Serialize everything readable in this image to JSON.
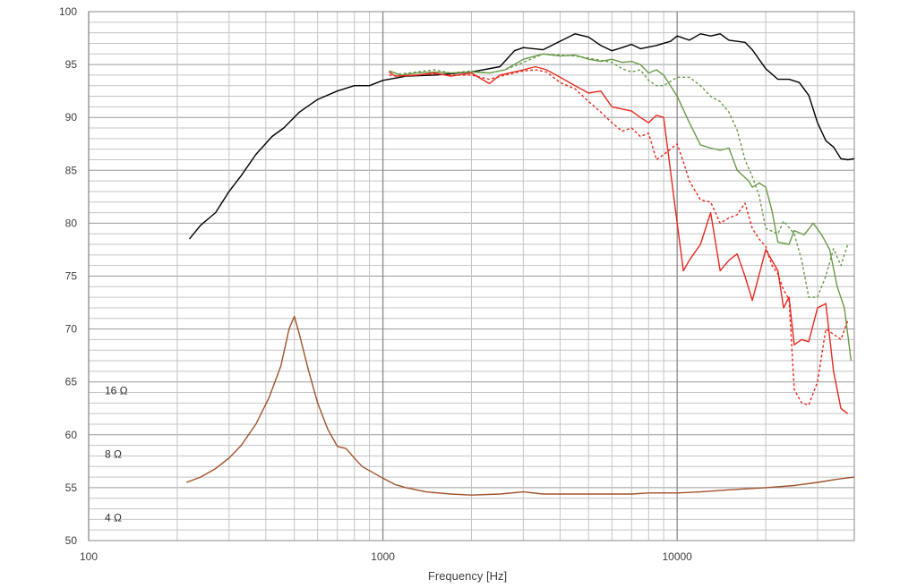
{
  "chart_data": {
    "type": "line",
    "xlabel": "Frequency [Hz]",
    "ylabel": "",
    "xscale": "log",
    "xlim": [
      100,
      40000
    ],
    "ylim": [
      50,
      100
    ],
    "x_tick_labels": [
      "100",
      "1000",
      "10000"
    ],
    "y_ticks": [
      50,
      55,
      60,
      65,
      70,
      75,
      80,
      85,
      90,
      95,
      100
    ],
    "grid": true,
    "impedance_labels": [
      "16 Ω",
      "8 Ω",
      "4 Ω"
    ],
    "series": [
      {
        "color": "#000000",
        "dash": "solid",
        "points": [
          [
            220,
            78.5
          ],
          [
            240,
            79.8
          ],
          [
            270,
            81
          ],
          [
            300,
            83
          ],
          [
            330,
            84.5
          ],
          [
            370,
            86.5
          ],
          [
            420,
            88.2
          ],
          [
            460,
            89
          ],
          [
            520,
            90.5
          ],
          [
            600,
            91.7
          ],
          [
            700,
            92.5
          ],
          [
            800,
            93
          ],
          [
            900,
            93
          ],
          [
            1000,
            93.5
          ],
          [
            1200,
            93.9
          ],
          [
            1500,
            94
          ],
          [
            2000,
            94.3
          ],
          [
            2500,
            94.8
          ],
          [
            2800,
            96.3
          ],
          [
            3000,
            96.6
          ],
          [
            3500,
            96.4
          ],
          [
            4000,
            97.2
          ],
          [
            4500,
            97.9
          ],
          [
            5000,
            97.6
          ],
          [
            5500,
            96.8
          ],
          [
            6000,
            96.3
          ],
          [
            6500,
            96.6
          ],
          [
            7000,
            96.9
          ],
          [
            7500,
            96.5
          ],
          [
            8500,
            96.8
          ],
          [
            9500,
            97.2
          ],
          [
            10000,
            97.7
          ],
          [
            11000,
            97.3
          ],
          [
            12000,
            97.9
          ],
          [
            13000,
            97.7
          ],
          [
            14000,
            97.9
          ],
          [
            15000,
            97.3
          ],
          [
            17000,
            97.1
          ],
          [
            18000,
            96.4
          ],
          [
            20000,
            94.6
          ],
          [
            22000,
            93.6
          ],
          [
            24000,
            93.6
          ],
          [
            26000,
            93.3
          ],
          [
            28000,
            92.1
          ],
          [
            30000,
            89.5
          ],
          [
            32000,
            87.8
          ],
          [
            34000,
            87.2
          ],
          [
            36000,
            86.1
          ],
          [
            38000,
            86
          ],
          [
            40000,
            86.1
          ]
        ]
      },
      {
        "color": "#6a9a4a",
        "dash": "solid",
        "points": [
          [
            1050,
            94.4
          ],
          [
            1150,
            94
          ],
          [
            1300,
            94.2
          ],
          [
            1500,
            94.3
          ],
          [
            1700,
            94.2
          ],
          [
            2000,
            94.3
          ],
          [
            2300,
            94.2
          ],
          [
            2600,
            94.5
          ],
          [
            3000,
            95.5
          ],
          [
            3500,
            96
          ],
          [
            4000,
            95.8
          ],
          [
            4500,
            95.9
          ],
          [
            5000,
            95.5
          ],
          [
            5500,
            95.3
          ],
          [
            6000,
            95.5
          ],
          [
            6500,
            95.2
          ],
          [
            7000,
            95.3
          ],
          [
            7500,
            95
          ],
          [
            8000,
            94.2
          ],
          [
            8500,
            94.5
          ],
          [
            9000,
            94
          ],
          [
            10000,
            92
          ],
          [
            11000,
            89.5
          ],
          [
            12000,
            87.4
          ],
          [
            13000,
            87.1
          ],
          [
            14000,
            86.9
          ],
          [
            15000,
            87.1
          ],
          [
            16000,
            85
          ],
          [
            17500,
            84
          ],
          [
            18000,
            83.4
          ],
          [
            19000,
            83.8
          ],
          [
            20000,
            83.4
          ],
          [
            21000,
            81.2
          ],
          [
            22000,
            78.2
          ],
          [
            24000,
            78
          ],
          [
            25000,
            79.3
          ],
          [
            27000,
            78.9
          ],
          [
            29000,
            80
          ],
          [
            31000,
            78.9
          ],
          [
            33000,
            77.5
          ],
          [
            35000,
            74
          ],
          [
            37000,
            72
          ],
          [
            39000,
            67
          ]
        ]
      },
      {
        "color": "#6a9a4a",
        "dash": "dashed",
        "points": [
          [
            1050,
            94.3
          ],
          [
            1150,
            94.1
          ],
          [
            1300,
            94.3
          ],
          [
            1500,
            94.5
          ],
          [
            1700,
            94.2
          ],
          [
            2000,
            94.4
          ],
          [
            2300,
            94.2
          ],
          [
            2600,
            94.5
          ],
          [
            3000,
            95.2
          ],
          [
            3500,
            96
          ],
          [
            4000,
            95.9
          ],
          [
            4500,
            95.8
          ],
          [
            5000,
            95.6
          ],
          [
            5500,
            95.4
          ],
          [
            6000,
            95.2
          ],
          [
            6500,
            94.6
          ],
          [
            7000,
            94.3
          ],
          [
            7500,
            94.5
          ],
          [
            8000,
            93.5
          ],
          [
            8500,
            93
          ],
          [
            9000,
            93
          ],
          [
            10000,
            93.8
          ],
          [
            11000,
            93.8
          ],
          [
            12000,
            93
          ],
          [
            13000,
            92
          ],
          [
            14000,
            91.5
          ],
          [
            15000,
            90.5
          ],
          [
            16000,
            88.8
          ],
          [
            17000,
            86
          ],
          [
            18000,
            84.4
          ],
          [
            19000,
            82.6
          ],
          [
            20000,
            79.5
          ],
          [
            22000,
            79
          ],
          [
            23000,
            80.2
          ],
          [
            25000,
            79
          ],
          [
            26500,
            76.5
          ],
          [
            28000,
            73
          ],
          [
            30000,
            73
          ],
          [
            32000,
            75
          ],
          [
            34000,
            77.6
          ],
          [
            36000,
            76
          ],
          [
            38000,
            78
          ]
        ]
      },
      {
        "color": "#e8281e",
        "dash": "solid",
        "points": [
          [
            1050,
            94.3
          ],
          [
            1100,
            93.9
          ],
          [
            1300,
            94
          ],
          [
            1500,
            94.2
          ],
          [
            1700,
            93.9
          ],
          [
            2000,
            94.2
          ],
          [
            2300,
            93.2
          ],
          [
            2500,
            94
          ],
          [
            3000,
            94.5
          ],
          [
            3300,
            94.8
          ],
          [
            3600,
            94.5
          ],
          [
            4000,
            93.8
          ],
          [
            4500,
            93
          ],
          [
            5000,
            92.3
          ],
          [
            5500,
            92.5
          ],
          [
            6000,
            91
          ],
          [
            7000,
            90.6
          ],
          [
            7500,
            90
          ],
          [
            8000,
            89.5
          ],
          [
            8500,
            90.2
          ],
          [
            9000,
            90
          ],
          [
            10000,
            80
          ],
          [
            10500,
            75.5
          ],
          [
            11000,
            76.5
          ],
          [
            12000,
            78
          ],
          [
            13000,
            81
          ],
          [
            14000,
            75.5
          ],
          [
            15000,
            76.5
          ],
          [
            16000,
            77.1
          ],
          [
            17000,
            75
          ],
          [
            18000,
            72.7
          ],
          [
            20000,
            77.5
          ],
          [
            22000,
            75.5
          ],
          [
            23000,
            72
          ],
          [
            24000,
            73
          ],
          [
            25000,
            68.5
          ],
          [
            26500,
            69
          ],
          [
            28000,
            68.8
          ],
          [
            30000,
            72
          ],
          [
            32000,
            72.4
          ],
          [
            34000,
            66
          ],
          [
            36000,
            62.5
          ],
          [
            38000,
            62
          ]
        ]
      },
      {
        "color": "#e8281e",
        "dash": "dashed",
        "points": [
          [
            1050,
            94
          ],
          [
            1150,
            93.9
          ],
          [
            1300,
            94
          ],
          [
            1500,
            94.1
          ],
          [
            1700,
            94
          ],
          [
            2000,
            94
          ],
          [
            2300,
            93.6
          ],
          [
            2600,
            94
          ],
          [
            3000,
            94.4
          ],
          [
            3300,
            94.5
          ],
          [
            3600,
            94.3
          ],
          [
            4000,
            93.3
          ],
          [
            4500,
            92.7
          ],
          [
            5000,
            91.5
          ],
          [
            5500,
            90.5
          ],
          [
            6000,
            89.5
          ],
          [
            6500,
            88.7
          ],
          [
            7000,
            89
          ],
          [
            7500,
            88.2
          ],
          [
            8000,
            88.5
          ],
          [
            8500,
            86
          ],
          [
            9000,
            86.5
          ],
          [
            10000,
            87.5
          ],
          [
            10500,
            85.8
          ],
          [
            11000,
            84
          ],
          [
            12000,
            82.2
          ],
          [
            13000,
            82
          ],
          [
            14000,
            80
          ],
          [
            15000,
            80.5
          ],
          [
            16000,
            80.8
          ],
          [
            17000,
            81.9
          ],
          [
            18000,
            79.5
          ],
          [
            19000,
            78.5
          ],
          [
            20000,
            77.8
          ],
          [
            21000,
            76
          ],
          [
            22000,
            75.2
          ],
          [
            23000,
            73.7
          ],
          [
            24000,
            72.8
          ],
          [
            25000,
            64.3
          ],
          [
            26500,
            63
          ],
          [
            28000,
            62.8
          ],
          [
            30000,
            65
          ],
          [
            32000,
            70
          ],
          [
            34000,
            69.5
          ],
          [
            36000,
            69
          ],
          [
            38000,
            70.8
          ]
        ]
      },
      {
        "color": "#a0522d",
        "dash": "solid",
        "points": [
          [
            215,
            55.5
          ],
          [
            240,
            56
          ],
          [
            270,
            56.8
          ],
          [
            300,
            57.8
          ],
          [
            330,
            59
          ],
          [
            370,
            61
          ],
          [
            410,
            63.5
          ],
          [
            450,
            66.5
          ],
          [
            480,
            70
          ],
          [
            500,
            71.2
          ],
          [
            520,
            69.5
          ],
          [
            560,
            66
          ],
          [
            600,
            63
          ],
          [
            650,
            60.5
          ],
          [
            700,
            58.9
          ],
          [
            750,
            58.7
          ],
          [
            800,
            57.8
          ],
          [
            850,
            57
          ],
          [
            1000,
            55.9
          ],
          [
            1100,
            55.3
          ],
          [
            1200,
            55
          ],
          [
            1400,
            54.6
          ],
          [
            1700,
            54.4
          ],
          [
            2000,
            54.3
          ],
          [
            2500,
            54.4
          ],
          [
            3000,
            54.6
          ],
          [
            3500,
            54.4
          ],
          [
            4000,
            54.4
          ],
          [
            5000,
            54.4
          ],
          [
            6000,
            54.4
          ],
          [
            7000,
            54.4
          ],
          [
            8000,
            54.5
          ],
          [
            10000,
            54.5
          ],
          [
            12000,
            54.6
          ],
          [
            15000,
            54.8
          ],
          [
            20000,
            55
          ],
          [
            25000,
            55.2
          ],
          [
            30000,
            55.5
          ],
          [
            35000,
            55.8
          ],
          [
            40000,
            56
          ]
        ]
      }
    ]
  }
}
